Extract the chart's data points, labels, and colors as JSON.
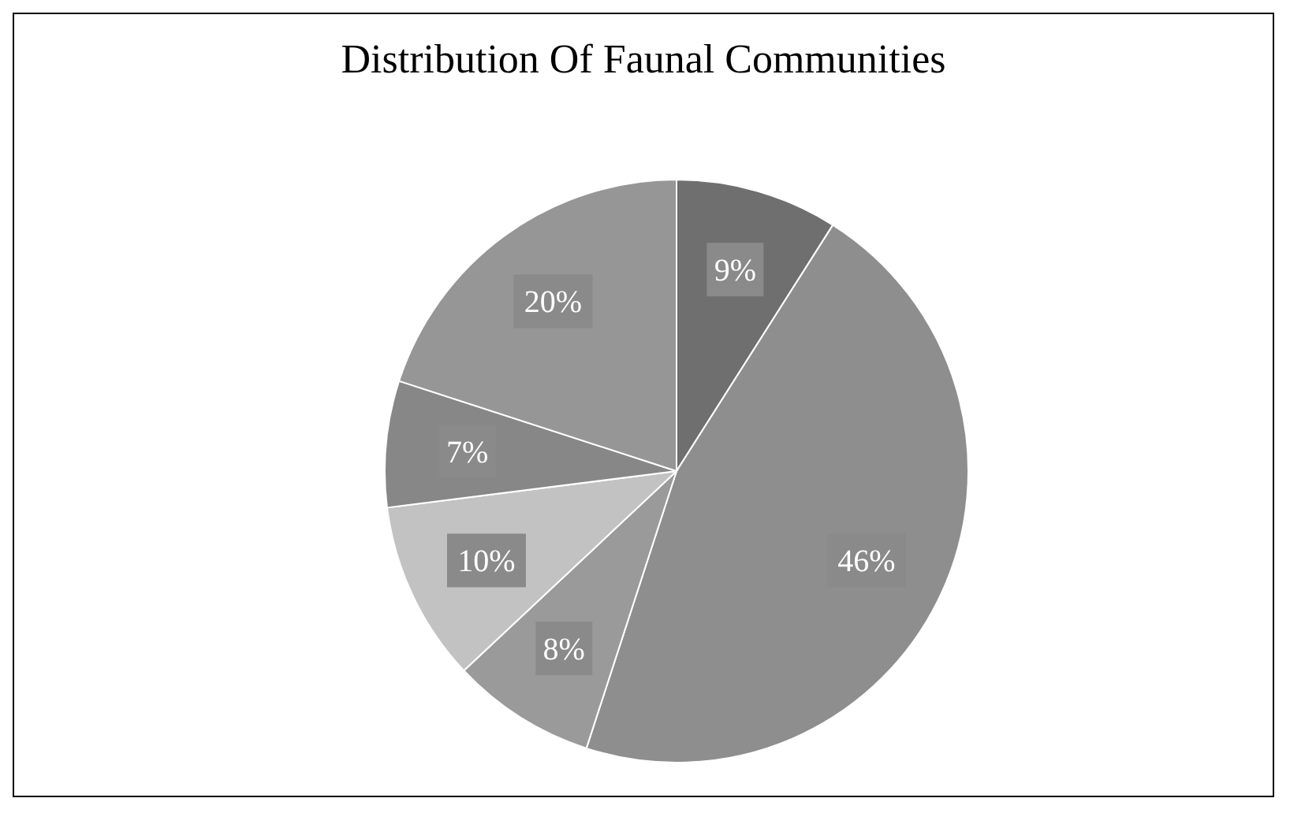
{
  "chart_data": {
    "type": "pie",
    "title": "Distribution Of Faunal Communities",
    "categories": [
      null,
      null,
      null,
      null,
      null,
      null
    ],
    "values": [
      9,
      46,
      8,
      10,
      7,
      20
    ],
    "value_labels": [
      "9%",
      "46%",
      "8%",
      "10%",
      "7%",
      "20%"
    ],
    "colors": [
      "#6f6f6f",
      "#8e8e8e",
      "#9a9a9a",
      "#c2c2c2",
      "#878787",
      "#969696"
    ],
    "legend": false
  }
}
